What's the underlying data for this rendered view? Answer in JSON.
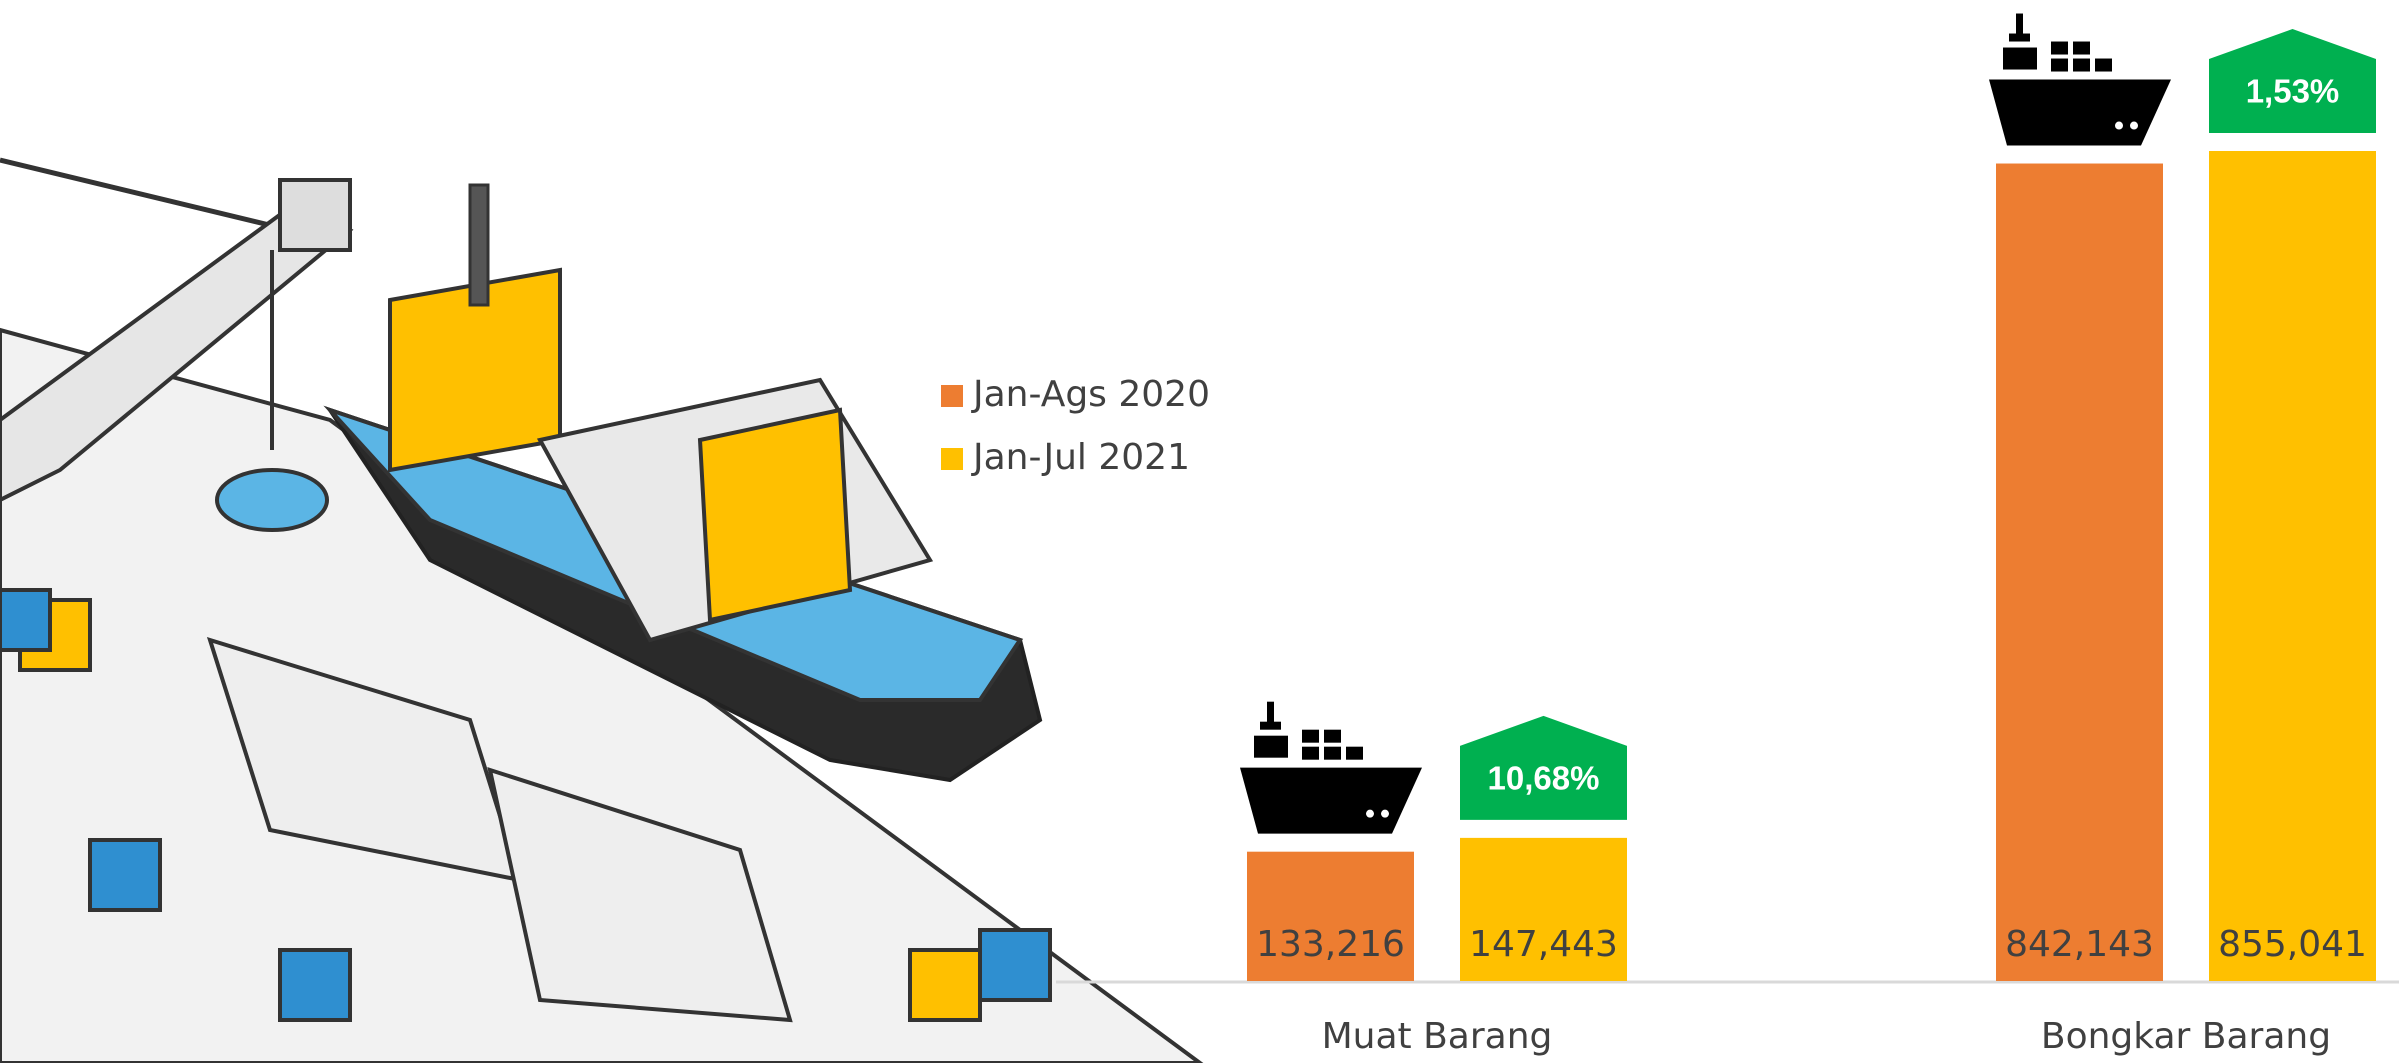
{
  "chart_data": {
    "type": "bar",
    "categories": [
      "Muat Barang",
      "Bongkar Barang"
    ],
    "series": [
      {
        "name": "Jan-Ags 2020",
        "color": "#ed7d31",
        "values": [
          133216,
          842143
        ],
        "value_labels": [
          "133,216",
          "842,143"
        ]
      },
      {
        "name": "Jan-Jul 2021",
        "color": "#ffc000",
        "values": [
          147443,
          855041
        ],
        "value_labels": [
          "147,443",
          "855,041"
        ]
      }
    ],
    "annotations": [
      "10,68%",
      "1,53%"
    ],
    "annotation_color": "#00b050"
  }
}
